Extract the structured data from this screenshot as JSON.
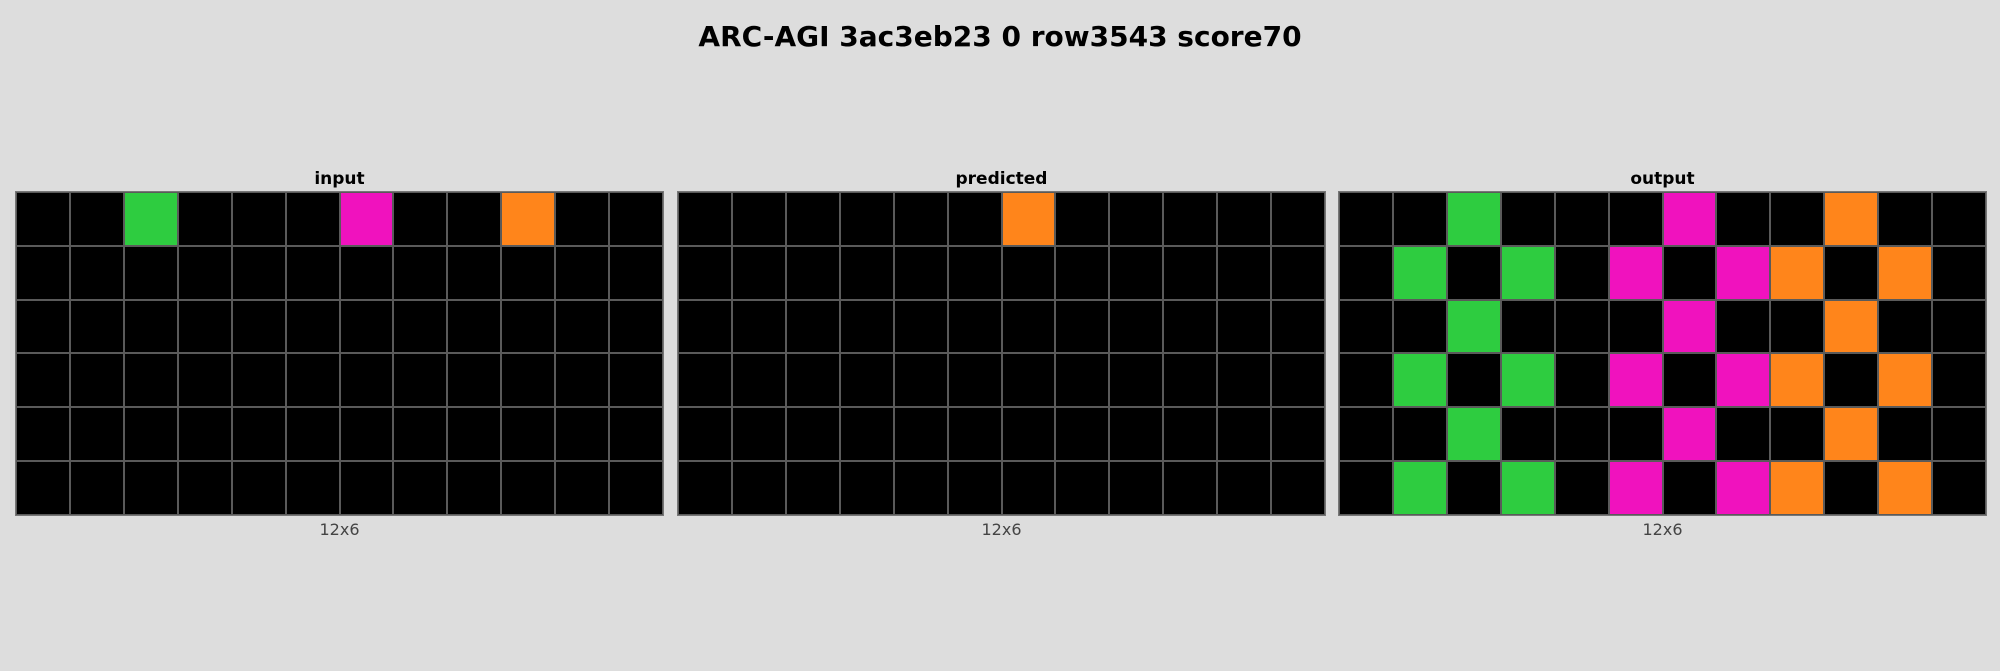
{
  "title": "ARC-AGI 3ac3eb23 0 row3543 score70",
  "palette": {
    "0": "#000000",
    "3": "#2ecc40",
    "6": "#f012be",
    "7": "#ff851b"
  },
  "panels": [
    {
      "label": "input",
      "dims": "12x6",
      "grid": [
        [
          0,
          0,
          3,
          0,
          0,
          0,
          6,
          0,
          0,
          7,
          0,
          0
        ],
        [
          0,
          0,
          0,
          0,
          0,
          0,
          0,
          0,
          0,
          0,
          0,
          0
        ],
        [
          0,
          0,
          0,
          0,
          0,
          0,
          0,
          0,
          0,
          0,
          0,
          0
        ],
        [
          0,
          0,
          0,
          0,
          0,
          0,
          0,
          0,
          0,
          0,
          0,
          0
        ],
        [
          0,
          0,
          0,
          0,
          0,
          0,
          0,
          0,
          0,
          0,
          0,
          0
        ],
        [
          0,
          0,
          0,
          0,
          0,
          0,
          0,
          0,
          0,
          0,
          0,
          0
        ]
      ]
    },
    {
      "label": "predicted",
      "dims": "12x6",
      "grid": [
        [
          0,
          0,
          0,
          0,
          0,
          0,
          7,
          0,
          0,
          0,
          0,
          0
        ],
        [
          0,
          0,
          0,
          0,
          0,
          0,
          0,
          0,
          0,
          0,
          0,
          0
        ],
        [
          0,
          0,
          0,
          0,
          0,
          0,
          0,
          0,
          0,
          0,
          0,
          0
        ],
        [
          0,
          0,
          0,
          0,
          0,
          0,
          0,
          0,
          0,
          0,
          0,
          0
        ],
        [
          0,
          0,
          0,
          0,
          0,
          0,
          0,
          0,
          0,
          0,
          0,
          0
        ],
        [
          0,
          0,
          0,
          0,
          0,
          0,
          0,
          0,
          0,
          0,
          0,
          0
        ]
      ]
    },
    {
      "label": "output",
      "dims": "12x6",
      "grid": [
        [
          0,
          0,
          3,
          0,
          0,
          0,
          6,
          0,
          0,
          7,
          0,
          0
        ],
        [
          0,
          3,
          0,
          3,
          0,
          6,
          0,
          6,
          7,
          0,
          7,
          0
        ],
        [
          0,
          0,
          3,
          0,
          0,
          0,
          6,
          0,
          0,
          7,
          0,
          0
        ],
        [
          0,
          3,
          0,
          3,
          0,
          6,
          0,
          6,
          7,
          0,
          7,
          0
        ],
        [
          0,
          0,
          3,
          0,
          0,
          0,
          6,
          0,
          0,
          7,
          0,
          0
        ],
        [
          0,
          3,
          0,
          3,
          0,
          6,
          0,
          6,
          7,
          0,
          7,
          0
        ]
      ]
    }
  ]
}
